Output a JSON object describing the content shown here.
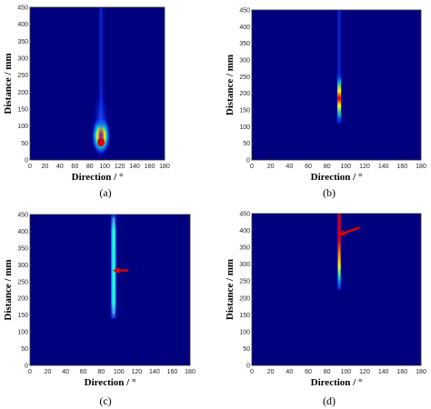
{
  "figure": {
    "colors": {
      "background": "#00007f",
      "mid": "#00d4d4",
      "high": "#ffff00",
      "peak": "#e00000",
      "arrow": "#e00000"
    },
    "panels_order": [
      "a",
      "b",
      "c",
      "d"
    ]
  },
  "chart_data": [
    {
      "id": "a",
      "type": "heatmap",
      "caption": "(a)",
      "xlabel": "Direction / °",
      "ylabel": "Distance / mm",
      "xlim": [
        0,
        180
      ],
      "ylim": [
        0,
        450
      ],
      "xticks": [
        "0",
        "20",
        "40",
        "60",
        "80",
        "100",
        "120",
        "140",
        "160",
        "180"
      ],
      "yticks": [
        "0",
        "50",
        "100",
        "150",
        "200",
        "250",
        "300",
        "350",
        "400",
        "450"
      ],
      "colormap": "jet",
      "colorbar": false,
      "grid": false,
      "features": [
        {
          "kind": "hotspot",
          "direction_deg": 95,
          "distance_mm": 55,
          "peak_level": "red"
        },
        {
          "kind": "faint_beam",
          "direction_deg": 95,
          "distance_range_mm": [
            60,
            450
          ]
        }
      ],
      "annotations": []
    },
    {
      "id": "b",
      "type": "heatmap",
      "caption": "(b)",
      "xlabel": "Direction / °",
      "ylabel": "Distance / mm",
      "xlim": [
        0,
        180
      ],
      "ylim": [
        0,
        450
      ],
      "xticks": [
        "0",
        "20",
        "40",
        "60",
        "80",
        "100",
        "120",
        "140",
        "160",
        "180"
      ],
      "yticks": [
        "0",
        "50",
        "100",
        "150",
        "200",
        "250",
        "300",
        "350",
        "400",
        "450"
      ],
      "colormap": "jet",
      "colorbar": false,
      "grid": false,
      "features": [
        {
          "kind": "streak",
          "direction_deg": 93,
          "distance_range_mm": [
            110,
            260
          ],
          "peak_distance_mm": 150,
          "peak_level": "red"
        },
        {
          "kind": "faint_beam",
          "direction_deg": 93,
          "distance_range_mm": [
            260,
            450
          ]
        }
      ],
      "annotations": []
    },
    {
      "id": "c",
      "type": "heatmap",
      "caption": "(c)",
      "xlabel": "Direction / °",
      "ylabel": "Distance / mm",
      "xlim": [
        0,
        180
      ],
      "ylim": [
        0,
        450
      ],
      "xticks": [
        "0",
        "20",
        "40",
        "60",
        "80",
        "100",
        "120",
        "140",
        "160",
        "180"
      ],
      "yticks": [
        "0",
        "50",
        "100",
        "150",
        "200",
        "250",
        "300",
        "350",
        "400",
        "450"
      ],
      "colormap": "jet",
      "colorbar": false,
      "grid": false,
      "features": [
        {
          "kind": "streak",
          "direction_deg": 94,
          "distance_range_mm": [
            140,
            450
          ],
          "peak_level": "cyan"
        }
      ],
      "annotations": [
        {
          "kind": "arrow",
          "direction_deg": 94,
          "distance_mm": 283,
          "from": "right"
        }
      ]
    },
    {
      "id": "d",
      "type": "heatmap",
      "caption": "(d)",
      "xlabel": "Direction / °",
      "ylabel": "Distance / mm",
      "xlim": [
        0,
        180
      ],
      "ylim": [
        0,
        450
      ],
      "xticks": [
        "0",
        "20",
        "40",
        "60",
        "80",
        "100",
        "120",
        "140",
        "160",
        "180"
      ],
      "yticks": [
        "0",
        "50",
        "100",
        "150",
        "200",
        "250",
        "300",
        "350",
        "400",
        "450"
      ],
      "colormap": "jet",
      "colorbar": false,
      "grid": false,
      "features": [
        {
          "kind": "streak",
          "direction_deg": 93,
          "distance_range_mm": [
            225,
            450
          ],
          "peak_distance_mm": 400,
          "peak_level": "red"
        }
      ],
      "annotations": [
        {
          "kind": "arrow",
          "direction_deg": 93,
          "distance_mm": 387,
          "from": "upper-right"
        }
      ]
    }
  ]
}
